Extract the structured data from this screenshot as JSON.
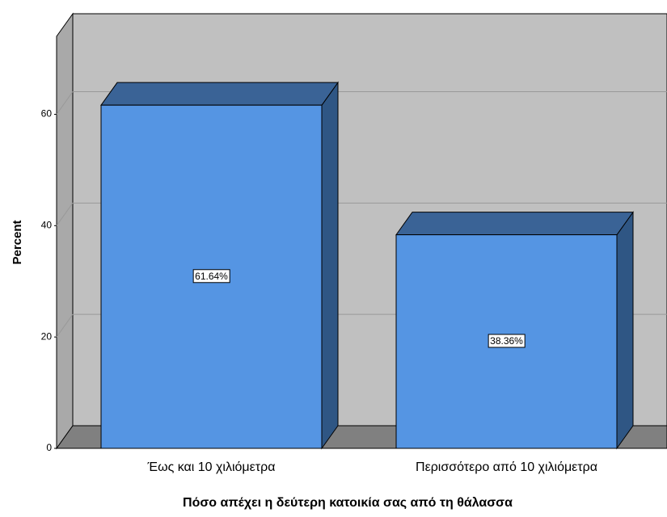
{
  "chart_data": {
    "type": "bar3d",
    "categories": [
      "Έως και 10 χιλιόμετρα",
      "Περισσότερο από 10 χιλιόμετρα"
    ],
    "values": [
      61.64,
      38.36
    ],
    "value_labels": [
      "61.64%",
      "38.36%"
    ],
    "color": "#5595e3",
    "ylabel": "Percent",
    "xlabel": "Πόσο απέχει η δεύτερη κατοικία σας από τη θάλασσα",
    "ylim": [
      0,
      74
    ],
    "yticks": [
      0,
      20,
      40,
      60
    ],
    "grid": true
  }
}
